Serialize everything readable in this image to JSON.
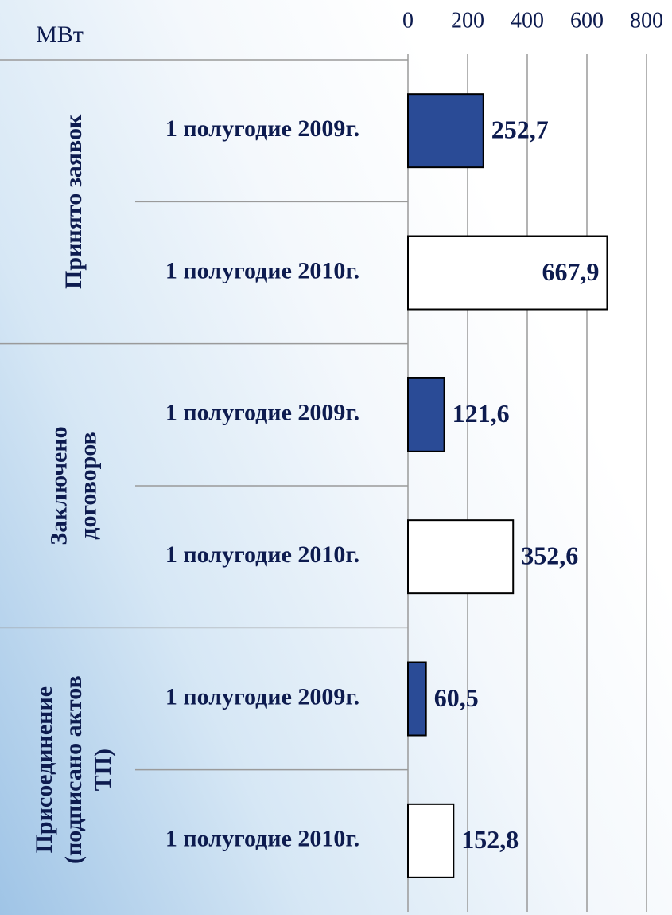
{
  "chart_data": {
    "type": "bar",
    "orientation": "horizontal",
    "unit_label": "МВт",
    "groups": [
      [
        "Принято заявок"
      ],
      [
        "Заключено",
        "договоров"
      ],
      [
        "Присоединение",
        "(подписано актов",
        "ТП)"
      ]
    ],
    "categories": [
      "1 полугодие 2009г.",
      "1 полугодие 2010г.",
      "1 полугодие 2009г.",
      "1 полугодие 2010г.",
      "1 полугодие 2009г.",
      "1 полугодие 2010г."
    ],
    "values": [
      252.7,
      667.9,
      121.6,
      352.6,
      60.5,
      152.8
    ],
    "value_labels": [
      "252,7",
      "667,9",
      "121,6",
      "352,6",
      "60,5",
      "152,8"
    ],
    "colors": [
      "#2a4b96",
      "#ffffff",
      "#2a4b96",
      "#ffffff",
      "#2a4b96",
      "#ffffff"
    ],
    "xlim": [
      0,
      800
    ],
    "xticks": [
      0,
      200,
      400,
      600,
      800
    ],
    "grid": true
  }
}
